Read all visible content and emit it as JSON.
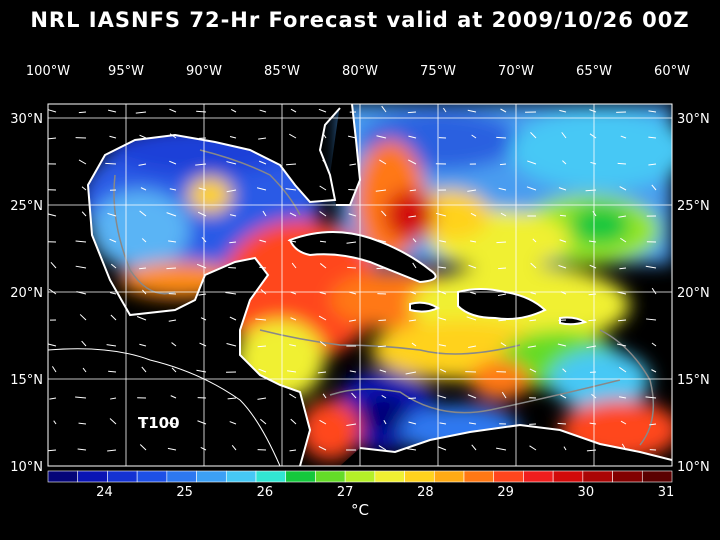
{
  "title": "NRL IASNFS  72-Hr Forecast valid at 2009/10/26 00Z",
  "map": {
    "lon_labels": [
      "100°W",
      "95°W",
      "90°W",
      "85°W",
      "80°W",
      "75°W",
      "70°W",
      "65°W",
      "60°W"
    ],
    "lat_labels": [
      "30°N",
      "25°N",
      "20°N",
      "15°N",
      "10°N"
    ],
    "annotation": "T100"
  },
  "colorbar": {
    "ticks": [
      "24",
      "25",
      "26",
      "27",
      "28",
      "29",
      "30",
      "31"
    ],
    "unit": "°C",
    "colors": [
      "#050578",
      "#0a14b4",
      "#1432d2",
      "#1e50e6",
      "#2d78f0",
      "#3ca0f5",
      "#46c8f5",
      "#32e6d2",
      "#14c83c",
      "#64dc28",
      "#b4f028",
      "#f0f032",
      "#ffd21e",
      "#ffaa14",
      "#ff7814",
      "#ff461e",
      "#f01e1e",
      "#d20a0a",
      "#aa0505",
      "#820000",
      "#5a0000"
    ]
  }
}
